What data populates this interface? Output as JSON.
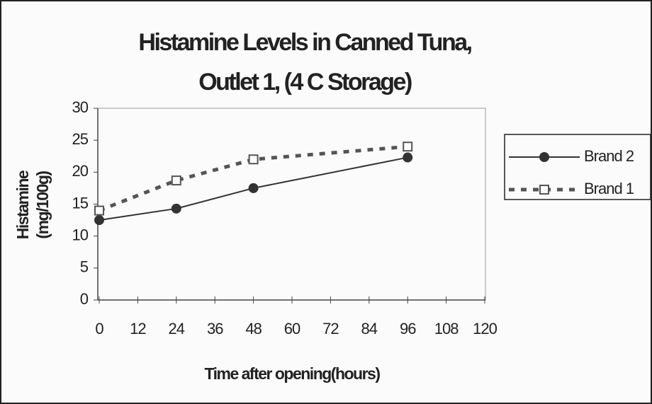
{
  "chart_data": {
    "type": "line",
    "title": [
      "Histamine Levels in Canned Tuna,",
      "Outlet 1, (4 C Storage)"
    ],
    "y_label": [
      "Histamine",
      "(mg/100g)"
    ],
    "x_label": "Time after opening(hours)",
    "series": [
      {
        "name": "Brand 2",
        "color": "#333333",
        "dash": "solid",
        "marker": "filled-circle",
        "x": [
          0,
          24,
          48,
          96
        ],
        "values": [
          12.5,
          14.3,
          17.5,
          22.3
        ]
      },
      {
        "name": "Brand 1",
        "color": "#555555",
        "dash": "dashed",
        "marker": "open-square",
        "x": [
          0,
          24,
          48,
          96
        ],
        "values": [
          14,
          18.7,
          22,
          24
        ]
      }
    ],
    "xlim": [
      0,
      120
    ],
    "xticks": [
      0,
      12,
      24,
      36,
      48,
      60,
      72,
      84,
      96,
      108,
      120
    ],
    "ylim": [
      0,
      30
    ],
    "yticks": [
      0,
      5,
      10,
      15,
      20,
      25,
      30
    ],
    "grid": false,
    "legend": "right"
  }
}
